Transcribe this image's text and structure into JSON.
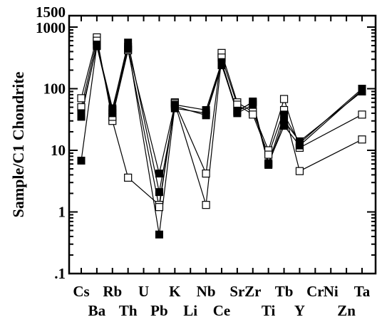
{
  "chart_data": {
    "type": "line",
    "ylabel": "Sample/C1 Chondrite",
    "yscale": "log",
    "ylim": [
      0.1,
      1500
    ],
    "y_ticks": [
      {
        "value": 1500,
        "label": "1500"
      },
      {
        "value": 1000,
        "label": "1000"
      },
      {
        "value": 100,
        "label": "100"
      },
      {
        "value": 10,
        "label": "10"
      },
      {
        "value": 1,
        "label": "1"
      },
      {
        "value": 0.1,
        "label": ".1"
      }
    ],
    "categories": [
      "Cs",
      "Ba",
      "Rb",
      "Th",
      "U",
      "Pb",
      "K",
      "Li",
      "Nb",
      "Ce",
      "Sr",
      "Zr",
      "Ti",
      "Tb",
      "Y",
      "Cr",
      "Ni",
      "Zn",
      "Ta"
    ],
    "category_label_rows": [
      0,
      1,
      0,
      1,
      0,
      1,
      0,
      1,
      0,
      1,
      0,
      0,
      1,
      0,
      1,
      0,
      0,
      1,
      0
    ],
    "grid": false,
    "series": [
      {
        "marker": "filled",
        "points": [
          [
            "Cs",
            6.8
          ],
          [
            "Ba",
            500
          ],
          [
            "Rb",
            40
          ],
          [
            "Th",
            440
          ],
          [
            "Pb",
            4.2
          ],
          [
            "K",
            55
          ],
          [
            "Nb",
            45
          ],
          [
            "Ce",
            270
          ],
          [
            "Sr",
            42
          ],
          [
            "Zr",
            62
          ],
          [
            "Ti",
            6
          ],
          [
            "Tb",
            38
          ],
          [
            "Y",
            13
          ],
          [
            "Ta",
            100
          ]
        ]
      },
      {
        "marker": "filled",
        "points": [
          [
            "Cs",
            40
          ],
          [
            "Ba",
            490
          ],
          [
            "Rb",
            45
          ],
          [
            "Th",
            560
          ],
          [
            "Pb",
            2.1
          ],
          [
            "K",
            48
          ],
          [
            "Nb",
            40
          ],
          [
            "Ce",
            250
          ],
          [
            "Sr",
            40
          ],
          [
            "Zr",
            55
          ],
          [
            "Ti",
            5.8
          ],
          [
            "Tb",
            30
          ],
          [
            "Y",
            14
          ],
          [
            "Ta",
            90
          ]
        ]
      },
      {
        "marker": "filled",
        "points": [
          [
            "Cs",
            35
          ],
          [
            "Ba",
            520
          ],
          [
            "Rb",
            48
          ],
          [
            "Th",
            480
          ],
          [
            "Pb",
            0.43
          ],
          [
            "K",
            52
          ],
          [
            "Nb",
            37
          ],
          [
            "Ce",
            240
          ],
          [
            "Sr",
            44
          ],
          [
            "Zr",
            60
          ],
          [
            "Ti",
            6.2
          ],
          [
            "Tb",
            25
          ],
          [
            "Y",
            12
          ],
          [
            "Ta",
            95
          ]
        ]
      },
      {
        "marker": "open",
        "points": [
          [
            "Cs",
            70
          ],
          [
            "Ba",
            680
          ],
          [
            "Rb",
            30
          ],
          [
            "Th",
            3.6
          ],
          [
            "Pb",
            1.3
          ],
          [
            "K",
            60
          ],
          [
            "Nb",
            4.2
          ],
          [
            "Ce",
            380
          ],
          [
            "Sr",
            60
          ],
          [
            "Zr",
            42
          ],
          [
            "Ti",
            10
          ],
          [
            "Tb",
            68
          ],
          [
            "Y",
            11
          ],
          [
            "Ta",
            38
          ]
        ]
      },
      {
        "marker": "open",
        "points": [
          [
            "Cs",
            50
          ],
          [
            "Ba",
            600
          ],
          [
            "Rb",
            35
          ],
          [
            "Th",
            420
          ],
          [
            "Pb",
            1.2
          ],
          [
            "K",
            58
          ],
          [
            "Nb",
            1.3
          ],
          [
            "Ce",
            320
          ],
          [
            "Sr",
            55
          ],
          [
            "Zr",
            38
          ],
          [
            "Ti",
            8.5
          ],
          [
            "Tb",
            45
          ],
          [
            "Y",
            4.6
          ],
          [
            "Ta",
            15
          ]
        ]
      }
    ]
  }
}
